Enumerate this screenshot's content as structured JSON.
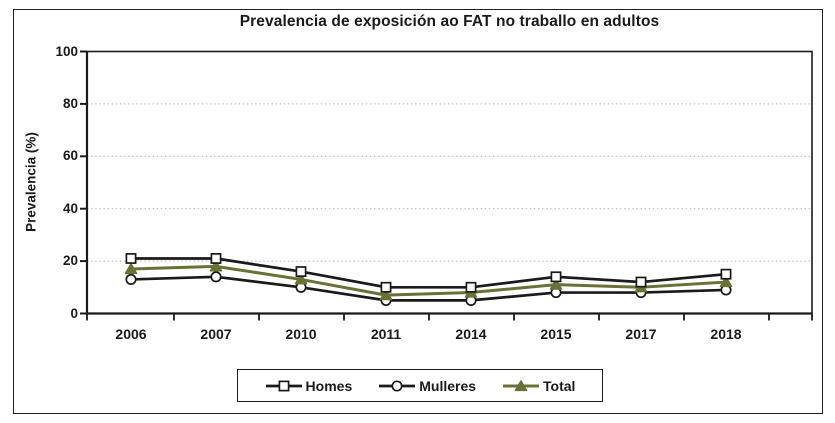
{
  "figure": {
    "border_color": "#1f1f1f",
    "background": "#ffffff",
    "grid_color": "#b3b3b3",
    "axis_color": "#1a1a1a"
  },
  "chart_data": {
    "type": "line",
    "title": "Prevalencia de exposición ao FAT no traballo en adultos",
    "ylabel": "Prevalencia (%)",
    "xlabel": "",
    "ylim": [
      0,
      100
    ],
    "yticks": [
      0,
      20,
      40,
      60,
      80,
      100
    ],
    "grid": "horizontal-dotted",
    "legend_position": "bottom-center-boxed",
    "categories": [
      "2006",
      "2007",
      "2010",
      "2011",
      "2014",
      "2015",
      "2017",
      "2018"
    ],
    "series": [
      {
        "name": "Homes",
        "marker": "square",
        "line_color": "#1a1a1a",
        "marker_fill": "#ffffff",
        "values": [
          21,
          21,
          16,
          10,
          10,
          14,
          12,
          15
        ]
      },
      {
        "name": "Mulleres",
        "marker": "circle",
        "line_color": "#1a1a1a",
        "marker_fill": "#ffffff",
        "values": [
          13,
          14,
          10,
          5,
          5,
          8,
          8,
          9
        ]
      },
      {
        "name": "Total",
        "marker": "triangle",
        "line_color": "#6b7036",
        "marker_fill": "#6b7036",
        "values": [
          17,
          18,
          13,
          7,
          8,
          11,
          10,
          12
        ]
      }
    ]
  }
}
